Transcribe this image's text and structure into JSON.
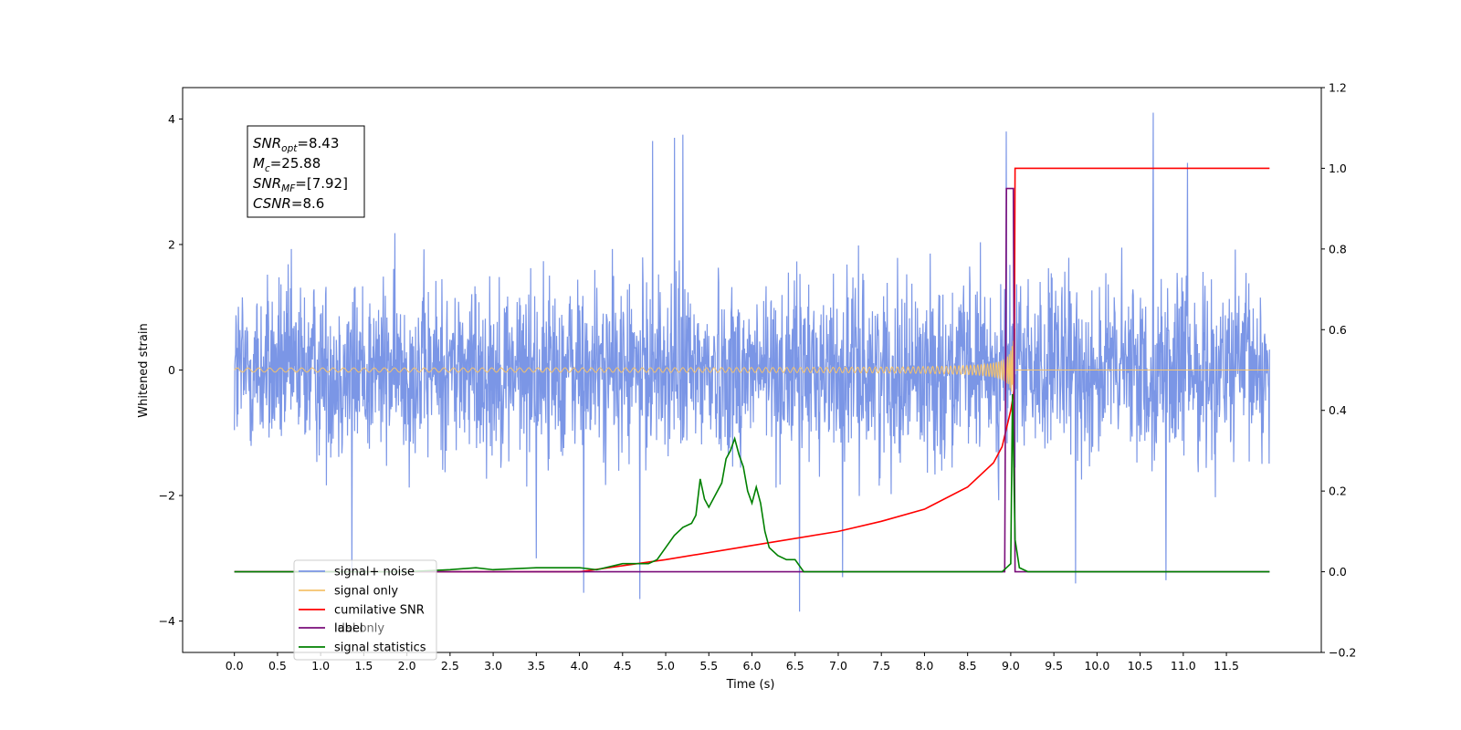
{
  "chart_data": {
    "type": "line",
    "title": "",
    "xlabel": "Time (s)",
    "ylabel": "Whitened strain",
    "y2label": "",
    "xlim": [
      -0.6,
      12.6
    ],
    "ylim": [
      -4.5,
      4.5
    ],
    "y2lim": [
      -0.2,
      1.2
    ],
    "x_ticks": [
      "0.0",
      "0.5",
      "1.0",
      "1.5",
      "2.0",
      "2.5",
      "3.0",
      "3.5",
      "4.0",
      "4.5",
      "5.0",
      "5.5",
      "6.0",
      "6.5",
      "7.0",
      "7.5",
      "8.0",
      "8.5",
      "9.0",
      "9.5",
      "10.0",
      "10.5",
      "11.0",
      "11.5"
    ],
    "y_ticks": [
      "−4",
      "−2",
      "0",
      "2",
      "4"
    ],
    "y2_ticks": [
      "−0.2",
      "0.0",
      "0.2",
      "0.4",
      "0.6",
      "0.8",
      "1.0",
      "1.2"
    ],
    "grid": false,
    "legend_position": "lower-left",
    "annotation": [
      {
        "base": "SNR",
        "sub": "opt",
        "value": "=8.43"
      },
      {
        "base": "M",
        "sub": "c",
        "value": "=25.88"
      },
      {
        "base": "SNR",
        "sub": "MF",
        "value": "=[7.92]"
      },
      {
        "base": "CSNR",
        "sub": "",
        "value": "=8.6"
      }
    ],
    "series": [
      {
        "name": "signal+ noise",
        "axis": "left",
        "color": "#7b96e6",
        "kind": "noise",
        "x_range": [
          0.0,
          12.0
        ],
        "band": [
          -2.0,
          2.0
        ],
        "spikes": [
          {
            "x": 1.36,
            "y": -3.2
          },
          {
            "x": 3.5,
            "y": -3.0
          },
          {
            "x": 4.05,
            "y": -3.55
          },
          {
            "x": 4.7,
            "y": -3.65
          },
          {
            "x": 4.85,
            "y": 3.65
          },
          {
            "x": 5.1,
            "y": 3.7
          },
          {
            "x": 5.2,
            "y": 3.75
          },
          {
            "x": 6.55,
            "y": -3.85
          },
          {
            "x": 7.05,
            "y": -3.3
          },
          {
            "x": 8.95,
            "y": 3.8
          },
          {
            "x": 9.75,
            "y": -3.4
          },
          {
            "x": 10.65,
            "y": 4.1
          },
          {
            "x": 10.8,
            "y": -3.35
          },
          {
            "x": 11.05,
            "y": 3.3
          }
        ]
      },
      {
        "name": "signal only",
        "axis": "left",
        "color": "#f5c26b",
        "kind": "chirp",
        "x_range": [
          0.0,
          12.0
        ],
        "merger_x": 9.04,
        "peak_amplitude": 0.62
      },
      {
        "name": "cumilative SNR",
        "axis": "right",
        "color": "#ff0000",
        "x": [
          0.0,
          4.0,
          5.0,
          6.0,
          7.0,
          7.5,
          8.0,
          8.5,
          8.8,
          8.9,
          9.0,
          9.04,
          9.05,
          12.0
        ],
        "y": [
          0.0,
          0.0,
          0.03,
          0.065,
          0.1,
          0.125,
          0.155,
          0.21,
          0.27,
          0.31,
          0.4,
          0.45,
          1.0,
          1.0
        ]
      },
      {
        "name": "label",
        "axis": "right",
        "color": "#7a0d7a",
        "x": [
          0.0,
          8.93,
          8.95,
          9.03,
          9.05,
          9.1,
          12.0
        ],
        "y": [
          0.0,
          0.0,
          0.95,
          0.95,
          0.0,
          0.0,
          0.0
        ]
      },
      {
        "name": "ldal only",
        "axis": "right",
        "color": "#aaaaaa",
        "legend_only": true,
        "x": [],
        "y": []
      },
      {
        "name": "signal statistics",
        "axis": "right",
        "color": "#008000",
        "x": [
          0.0,
          2.0,
          2.5,
          2.8,
          3.0,
          3.5,
          4.0,
          4.2,
          4.5,
          4.8,
          4.9,
          5.0,
          5.1,
          5.2,
          5.3,
          5.35,
          5.4,
          5.45,
          5.5,
          5.55,
          5.6,
          5.65,
          5.7,
          5.75,
          5.8,
          5.85,
          5.9,
          5.95,
          6.0,
          6.05,
          6.1,
          6.15,
          6.2,
          6.3,
          6.4,
          6.5,
          6.6,
          6.7,
          7.0,
          7.5,
          8.0,
          8.5,
          8.9,
          8.95,
          9.0,
          9.02,
          9.05,
          9.1,
          9.2,
          10.0,
          12.0
        ],
        "y": [
          0.0,
          0.0,
          0.005,
          0.01,
          0.005,
          0.01,
          0.01,
          0.005,
          0.02,
          0.02,
          0.03,
          0.06,
          0.09,
          0.11,
          0.12,
          0.14,
          0.23,
          0.18,
          0.16,
          0.18,
          0.2,
          0.22,
          0.28,
          0.3,
          0.33,
          0.29,
          0.26,
          0.2,
          0.17,
          0.21,
          0.17,
          0.1,
          0.06,
          0.04,
          0.03,
          0.03,
          0.0,
          0.0,
          0.0,
          0.0,
          0.0,
          0.0,
          0.0,
          0.01,
          0.02,
          0.44,
          0.08,
          0.01,
          0.0,
          0.0,
          0.0
        ]
      }
    ]
  }
}
